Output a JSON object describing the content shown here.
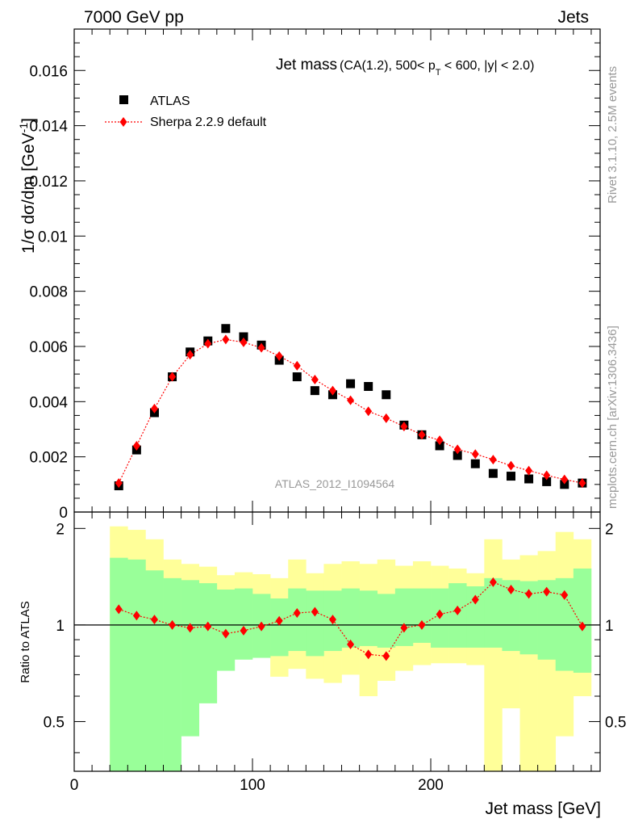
{
  "header": {
    "left": "7000 GeV pp",
    "right": "Jets"
  },
  "side": {
    "rivet": "Rivet 3.1.10,  2.5M events",
    "mcplots": "mcplots.cern.ch [arXiv:1306.3436]"
  },
  "chart_data": [
    {
      "type": "scatter",
      "panel": "main",
      "title": "Jet mass",
      "title_cuts": "(CA(1.2), 500< p",
      "title_sub": "T",
      "title_tail": " < 600, |y| < 2.0)",
      "ylabel": "1/σ dσ/dm [GeV",
      "ylabel_sup": "-1",
      "ylabel_close": "]",
      "watermark": "ATLAS_2012_I1094564",
      "xlim": [
        0,
        295
      ],
      "ylim": [
        0,
        0.0175
      ],
      "yticks": [
        0,
        0.002,
        0.004,
        0.006,
        0.008,
        0.01,
        0.012,
        0.014,
        0.016
      ],
      "ytick_labels": [
        "0",
        "0.002",
        "0.004",
        "0.006",
        "0.008",
        "0.01",
        "0.012",
        "0.014",
        "0.016"
      ],
      "legend_position": "top-left",
      "x": [
        25,
        35,
        45,
        55,
        65,
        75,
        85,
        95,
        105,
        115,
        125,
        135,
        145,
        155,
        165,
        175,
        185,
        195,
        205,
        215,
        225,
        235,
        245,
        255,
        265,
        275,
        285
      ],
      "series": [
        {
          "name": "ATLAS",
          "marker": "square",
          "color": "#000000",
          "values": [
            0.00095,
            0.00225,
            0.0036,
            0.0049,
            0.0058,
            0.0062,
            0.00665,
            0.00635,
            0.00605,
            0.0055,
            0.0049,
            0.0044,
            0.00425,
            0.00465,
            0.00455,
            0.00425,
            0.00315,
            0.0028,
            0.0024,
            0.00205,
            0.00175,
            0.0014,
            0.0013,
            0.0012,
            0.0011,
            0.001,
            0.00105
          ]
        },
        {
          "name": "Sherpa 2.2.9 default",
          "marker": "diamond",
          "color": "#ff0000",
          "values": [
            0.00105,
            0.0024,
            0.00375,
            0.0049,
            0.0057,
            0.0061,
            0.00625,
            0.00615,
            0.00595,
            0.00565,
            0.0053,
            0.0048,
            0.0044,
            0.00405,
            0.00365,
            0.0034,
            0.0031,
            0.0028,
            0.0026,
            0.00227,
            0.0021,
            0.0019,
            0.00168,
            0.0015,
            0.00133,
            0.00118,
            0.00105
          ]
        }
      ]
    },
    {
      "type": "line",
      "panel": "ratio",
      "ylabel": "Ratio to ATLAS",
      "xlabel": "Jet mass [GeV]",
      "xlim": [
        0,
        295
      ],
      "ylim": [
        0.35,
        2.25
      ],
      "yticks": [
        0.5,
        1,
        2
      ],
      "ytick_labels": [
        "0.5",
        "1",
        "2"
      ],
      "xticks": [
        0,
        100,
        200
      ],
      "xtick_labels": [
        "0",
        "100",
        "200"
      ],
      "bin_edges": [
        20,
        30,
        40,
        50,
        60,
        70,
        80,
        90,
        100,
        110,
        120,
        130,
        140,
        150,
        160,
        170,
        180,
        190,
        200,
        210,
        220,
        230,
        240,
        250,
        260,
        270,
        280,
        290
      ],
      "band_stat_syst": {
        "color": "#ffff99",
        "low": [
          0.2,
          0.2,
          0.55,
          0.71,
          0.8,
          0.76,
          0.8,
          0.84,
          0.81,
          0.69,
          0.73,
          0.68,
          0.66,
          0.7,
          0.6,
          0.67,
          0.72,
          0.75,
          0.76,
          0.76,
          0.75,
          0.3,
          0.55,
          0.35,
          0.3,
          0.45,
          0.6
        ],
        "high": [
          2.03,
          1.98,
          1.85,
          1.6,
          1.55,
          1.52,
          1.43,
          1.46,
          1.44,
          1.4,
          1.6,
          1.45,
          1.55,
          1.58,
          1.55,
          1.6,
          1.53,
          1.58,
          1.53,
          1.5,
          1.45,
          1.85,
          1.6,
          1.65,
          1.7,
          1.95,
          1.85
        ]
      },
      "band_stat": {
        "color": "#99ff99",
        "low": [
          0.3,
          0.3,
          0.3,
          0.35,
          0.45,
          0.57,
          0.72,
          0.78,
          0.79,
          0.8,
          0.83,
          0.8,
          0.83,
          0.85,
          0.86,
          0.85,
          0.86,
          0.88,
          0.85,
          0.85,
          0.85,
          0.85,
          0.83,
          0.81,
          0.78,
          0.72,
          0.71
        ],
        "high": [
          1.62,
          1.6,
          1.48,
          1.4,
          1.38,
          1.35,
          1.29,
          1.3,
          1.25,
          1.21,
          1.3,
          1.28,
          1.28,
          1.3,
          1.28,
          1.25,
          1.3,
          1.3,
          1.3,
          1.35,
          1.32,
          1.4,
          1.38,
          1.37,
          1.38,
          1.4,
          1.5
        ]
      },
      "reference_line": 1,
      "series": [
        {
          "name": "Sherpa 2.2.9 default",
          "color": "#ff0000",
          "x": [
            25,
            35,
            45,
            55,
            65,
            75,
            85,
            95,
            105,
            115,
            125,
            135,
            145,
            155,
            165,
            175,
            185,
            195,
            205,
            215,
            225,
            235,
            245,
            255,
            265,
            275,
            285
          ],
          "values": [
            1.12,
            1.07,
            1.04,
            1.0,
            0.98,
            0.99,
            0.94,
            0.96,
            0.99,
            1.03,
            1.09,
            1.1,
            1.04,
            0.87,
            0.81,
            0.8,
            0.98,
            1.0,
            1.08,
            1.11,
            1.2,
            1.36,
            1.29,
            1.25,
            1.27,
            1.24,
            0.99
          ]
        }
      ]
    }
  ]
}
